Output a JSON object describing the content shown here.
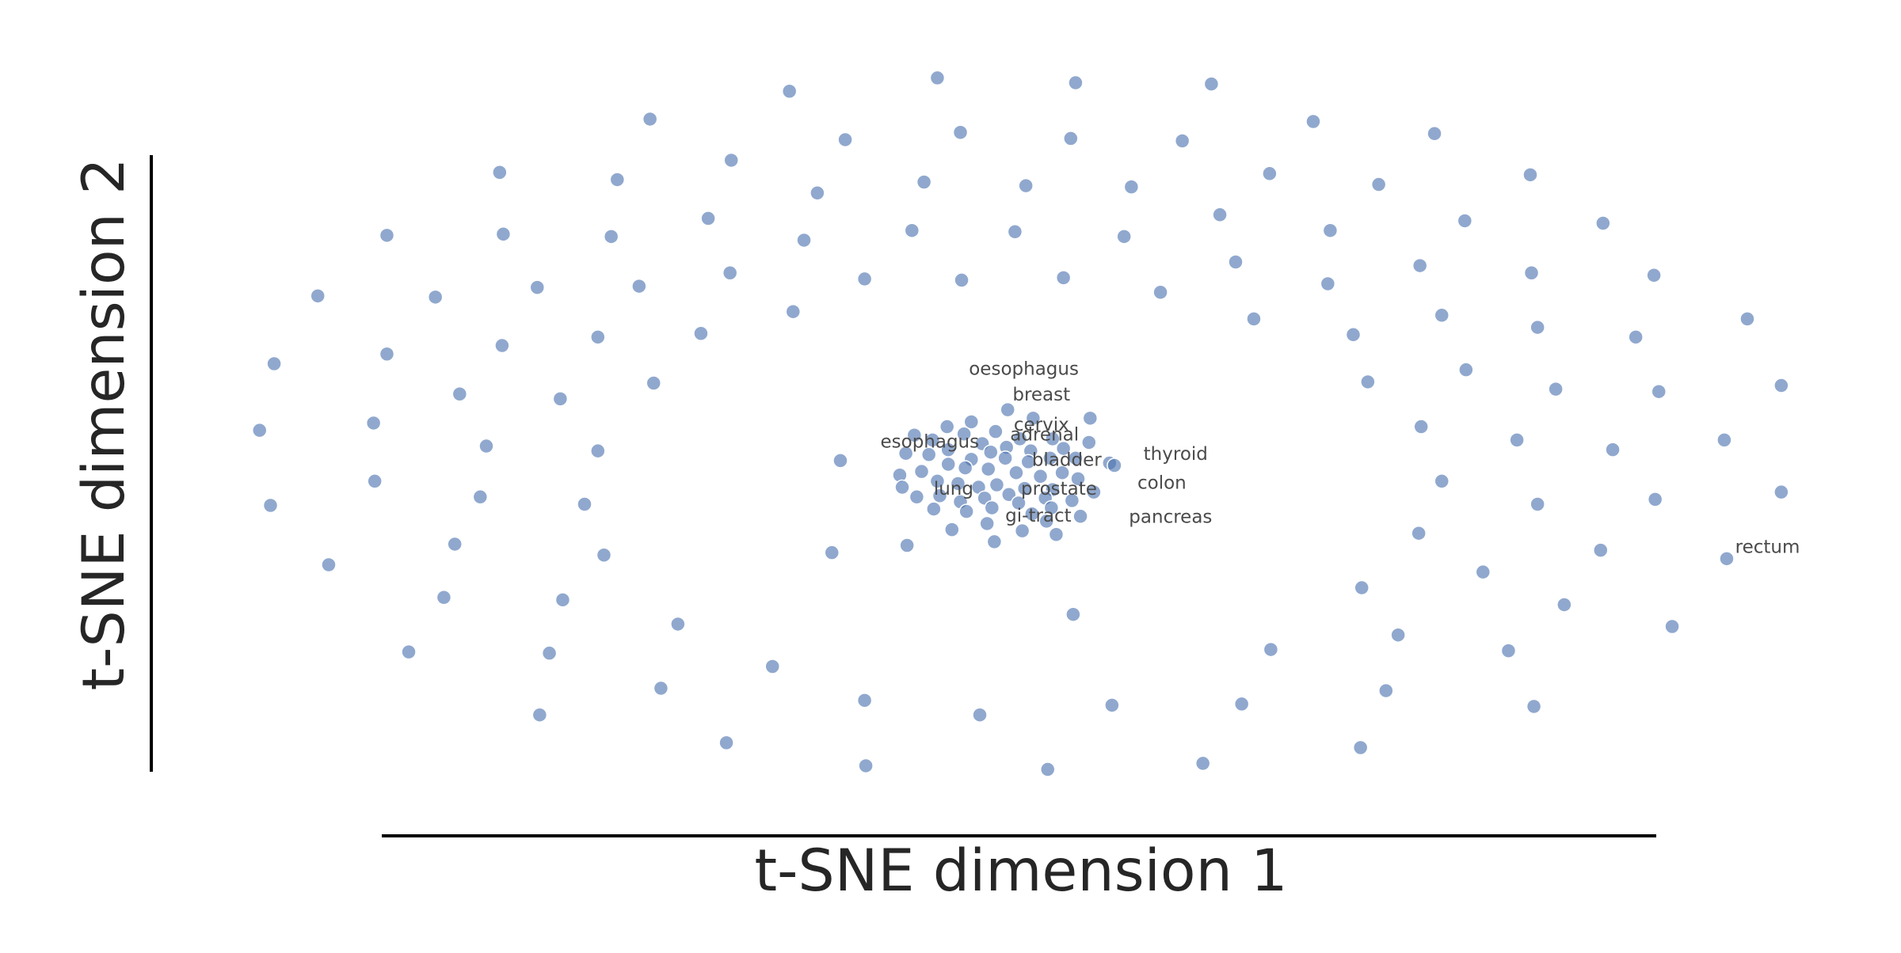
{
  "chart_data": {
    "type": "scatter",
    "x_label": "t-SNE dimension 1",
    "y_label": "t-SNE dimension 2",
    "color": "#4c72b0",
    "xlim": [
      -65,
      65
    ],
    "ylim": [
      -27,
      33
    ],
    "x": [
      -18.9,
      -6.7,
      4.7,
      15.9,
      -30.4,
      -14.3,
      -4.8,
      4.3,
      13.5,
      24.3,
      34.3,
      -42.8,
      -33.1,
      -23.7,
      -16.6,
      -7.8,
      0.6,
      9.3,
      20.7,
      29.7,
      42.2,
      -52.1,
      -42.5,
      -33.6,
      -25.6,
      -17.7,
      -8.8,
      -0.3,
      8.7,
      16.6,
      25.7,
      36.8,
      48.2,
      -57.8,
      -48.1,
      -39.7,
      -31.3,
      -23.8,
      -12.7,
      -4.7,
      3.7,
      11.7,
      17.9,
      25.5,
      33.1,
      42.3,
      52.4,
      -61.4,
      -52.1,
      -42.6,
      -34.7,
      -26.2,
      -18.6,
      19.4,
      27.6,
      34.9,
      42.8,
      50.9,
      60.1,
      -62.6,
      -53.2,
      -46.1,
      -37.8,
      -30.1,
      28.8,
      36.9,
      44.3,
      52.8,
      62.9,
      -61.7,
      -53.1,
      -43.9,
      -34.7,
      -14.7,
      33.2,
      41.1,
      49.0,
      58.2,
      -56.9,
      -44.4,
      -35.8,
      -34.2,
      -46.5,
      -15.4,
      -9.2,
      34.9,
      42.8,
      52.5,
      62.9,
      58.4,
      -47.4,
      -37.6,
      -28.1,
      4.5,
      28.3,
      33.0,
      38.3,
      48.0,
      45.0,
      53.9,
      -50.3,
      -38.7,
      -20.3,
      20.8,
      31.3,
      40.4,
      -29.5,
      -12.7,
      -3.2,
      7.7,
      18.4,
      30.3,
      42.5,
      -39.5,
      -24.1,
      -12.6,
      2.4,
      15.2,
      28.2,
      -0.9,
      1.2,
      5.9,
      -3.9,
      -5.9,
      -1.9,
      -4.5,
      -8.6,
      -7.1,
      0.1,
      2.8,
      5.8,
      -3.0,
      -9.3,
      -7.4,
      -5.8,
      -1.0,
      1.0,
      3.7,
      -3.9,
      -2.3,
      -1.1,
      0.8,
      2.6,
      4.7,
      7.5,
      7.9,
      -5.8,
      -9.8,
      -8.0,
      -4.4,
      -2.5,
      -0.2,
      1.8,
      3.6,
      4.9,
      -9.6,
      -6.7,
      -5.0,
      -3.3,
      -1.8,
      0.5,
      2.8,
      6.2,
      -8.4,
      -6.5,
      -4.8,
      -2.8,
      -0.8,
      2.2,
      4.4,
      -7.0,
      -4.3,
      -2.2,
      0.0,
      1.1,
      2.7,
      5.1,
      -2.6,
      -5.5,
      0.3,
      3.1,
      -2.0,
      2.3
    ],
    "y": [
      30.5,
      31.6,
      31.2,
      31.1,
      28.2,
      26.5,
      27.1,
      26.6,
      26.4,
      28.0,
      27.0,
      23.8,
      23.2,
      24.8,
      22.1,
      23.0,
      22.7,
      22.6,
      23.7,
      22.8,
      23.6,
      18.6,
      18.7,
      18.5,
      20.0,
      18.2,
      19.0,
      18.9,
      18.5,
      20.3,
      19.0,
      19.8,
      19.6,
      13.6,
      13.5,
      14.3,
      14.4,
      15.5,
      15.0,
      14.9,
      15.1,
      13.9,
      16.4,
      14.6,
      16.1,
      15.5,
      15.3,
      8.0,
      8.8,
      9.5,
      10.2,
      10.5,
      12.3,
      11.7,
      10.4,
      12.0,
      11.0,
      10.2,
      11.7,
      2.5,
      3.1,
      5.5,
      5.1,
      6.4,
      6.5,
      7.5,
      5.9,
      5.7,
      6.2,
      -3.7,
      -1.7,
      1.2,
      0.8,
      0.0,
      2.8,
      1.7,
      0.9,
      1.7,
      -8.6,
      -3.0,
      -3.6,
      -7.8,
      -6.9,
      -7.6,
      -7.0,
      -1.7,
      -3.6,
      -3.2,
      -2.6,
      -8.1,
      -11.3,
      -11.5,
      -13.5,
      -12.7,
      -10.5,
      -6.0,
      -9.2,
      -7.4,
      -11.9,
      -13.7,
      -15.8,
      -15.9,
      -17.0,
      -15.6,
      -14.4,
      -15.7,
      -18.8,
      -19.8,
      -21.0,
      -20.2,
      -20.1,
      -19.0,
      -20.3,
      -21.0,
      -23.3,
      -25.2,
      -25.5,
      -25.0,
      -23.7,
      4.2,
      3.5,
      3.5,
      3.2,
      2.8,
      2.4,
      2.2,
      2.1,
      1.7,
      1.8,
      1.8,
      1.5,
      1.4,
      0.6,
      0.5,
      0.9,
      1.1,
      0.8,
      1.0,
      0.1,
      0.7,
      0.2,
      -0.1,
      0.2,
      0.2,
      -0.2,
      -0.4,
      -0.3,
      -1.2,
      -0.9,
      -0.6,
      -0.7,
      -1.0,
      -1.3,
      -1.0,
      -1.5,
      -2.2,
      -1.7,
      -1.9,
      -2.2,
      -2.0,
      -2.3,
      -2.4,
      -2.6,
      -3.0,
      -2.9,
      -3.4,
      -3.1,
      -2.8,
      -3.1,
      -3.3,
      -4.0,
      -4.2,
      -3.9,
      -3.5,
      -4.4,
      -3.9,
      -4.6,
      -5.2,
      -5.7,
      -5.8,
      -6.1,
      -6.7,
      -5.0
    ],
    "annotations": [
      {
        "text": "oesophagus",
        "x": -4.1,
        "y": 7.5
      },
      {
        "text": "breast",
        "x": -0.5,
        "y": 5.4
      },
      {
        "text": "cervix",
        "x": -0.4,
        "y": 2.9
      },
      {
        "text": "adrenal",
        "x": -0.7,
        "y": 2.1
      },
      {
        "text": "esophagus",
        "x": -11.4,
        "y": 1.5
      },
      {
        "text": "bladder",
        "x": 1.1,
        "y": 0.0
      },
      {
        "text": "thyroid",
        "x": 10.3,
        "y": 0.5
      },
      {
        "text": "colon",
        "x": 9.8,
        "y": -1.9
      },
      {
        "text": "lung",
        "x": -7.0,
        "y": -2.4
      },
      {
        "text": "prostate",
        "x": 0.2,
        "y": -2.4
      },
      {
        "text": "pancreas",
        "x": 9.1,
        "y": -4.7
      },
      {
        "text": "gi-tract",
        "x": -1.1,
        "y": -4.6
      },
      {
        "text": "rectum",
        "x": 59.1,
        "y": -7.2
      }
    ]
  }
}
